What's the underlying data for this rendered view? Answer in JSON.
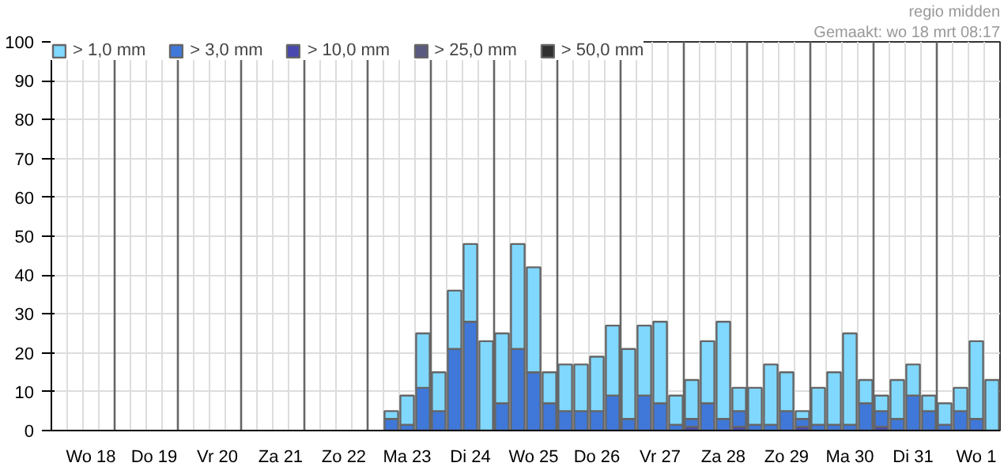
{
  "chart_data": {
    "type": "bar",
    "stacked": true,
    "categories": [
      null,
      null,
      "Wo 18",
      null,
      null,
      null,
      "Do 19",
      null,
      null,
      null,
      "Vr 20",
      null,
      null,
      null,
      "Za 21",
      null,
      null,
      null,
      "Zo 22",
      null,
      null,
      null,
      "Ma 23",
      null,
      null,
      null,
      "Di 24",
      null,
      null,
      null,
      "Wo 25",
      null,
      null,
      null,
      "Do 26",
      null,
      null,
      null,
      "Vr 27",
      null,
      null,
      null,
      "Za 28",
      null,
      null,
      null,
      "Zo 29",
      null,
      null,
      null,
      "Ma 30",
      null,
      null,
      null,
      "Di 31",
      null,
      null,
      null,
      "Wo 1",
      null
    ],
    "series": [
      {
        "name": "> 50,0 mm",
        "color": "#303030",
        "values": [
          null,
          null,
          null,
          null,
          null,
          null,
          null,
          null,
          null,
          null,
          null,
          null,
          null,
          null,
          null,
          null,
          null,
          null,
          null,
          null,
          null,
          null,
          null,
          null,
          null,
          null,
          null,
          null,
          null,
          null,
          null,
          null,
          null,
          null,
          null,
          null,
          null,
          null,
          null,
          null,
          null,
          null,
          null,
          null,
          null,
          null,
          null,
          null,
          null,
          null,
          null,
          null,
          null,
          null,
          null,
          null,
          null,
          null,
          null,
          null
        ]
      },
      {
        "name": "> 25,0 mm",
        "color": "#5a5a80",
        "values": [
          null,
          null,
          null,
          null,
          null,
          null,
          null,
          null,
          null,
          null,
          null,
          null,
          null,
          null,
          null,
          null,
          null,
          null,
          null,
          null,
          null,
          null,
          null,
          null,
          null,
          null,
          null,
          null,
          null,
          null,
          null,
          null,
          null,
          null,
          null,
          null,
          null,
          null,
          null,
          null,
          null,
          null,
          null,
          null,
          null,
          null,
          null,
          null,
          null,
          null,
          null,
          null,
          null,
          null,
          null,
          null,
          null,
          null,
          null,
          null
        ]
      },
      {
        "name": "> 10,0 mm",
        "color": "#4848b0",
        "values": [
          null,
          null,
          null,
          null,
          null,
          null,
          null,
          null,
          null,
          null,
          null,
          null,
          null,
          null,
          null,
          null,
          null,
          null,
          null,
          null,
          null,
          null,
          null,
          null,
          null,
          null,
          null,
          null,
          null,
          null,
          null,
          null,
          null,
          null,
          null,
          null,
          null,
          null,
          null,
          null,
          1,
          null,
          null,
          1,
          null,
          null,
          null,
          1,
          null,
          null,
          null,
          null,
          1,
          null,
          null,
          null,
          null,
          null,
          null,
          null
        ]
      },
      {
        "name": "> 3,0 mm",
        "color": "#3f78d8",
        "values": [
          null,
          null,
          null,
          null,
          null,
          null,
          null,
          null,
          null,
          null,
          null,
          null,
          null,
          null,
          null,
          null,
          null,
          null,
          null,
          null,
          null,
          3,
          1.5,
          11,
          5,
          21,
          28,
          null,
          7,
          21,
          15,
          7,
          5,
          5,
          5,
          9,
          3,
          9,
          7,
          1.5,
          2,
          7,
          3,
          4,
          1.5,
          1.5,
          5,
          2,
          1.5,
          1.5,
          1.5,
          7,
          4,
          3,
          9,
          5,
          1.5,
          5,
          3,
          null
        ]
      },
      {
        "name": "> 1,0 mm",
        "color": "#80d8ff",
        "values": [
          null,
          null,
          null,
          null,
          null,
          null,
          null,
          null,
          null,
          null,
          null,
          null,
          null,
          null,
          null,
          null,
          null,
          null,
          null,
          null,
          null,
          2,
          7.5,
          14,
          10,
          15,
          20,
          23,
          18,
          27,
          27,
          8,
          12,
          12,
          14,
          18,
          18,
          18,
          21,
          7.5,
          10,
          16,
          25,
          6,
          9.5,
          15.5,
          10,
          2,
          9.5,
          13.5,
          23.5,
          6,
          4,
          10,
          8,
          4,
          5.5,
          6,
          20,
          13
        ]
      }
    ],
    "ylim": [
      0,
      100
    ],
    "yticks": [
      0,
      10,
      20,
      30,
      40,
      50,
      60,
      70,
      80,
      90,
      100
    ],
    "grid": true,
    "legend": "top left",
    "annotations": [
      "regio midden",
      "Gemaakt: wo 18 mrt 08:17"
    ]
  }
}
